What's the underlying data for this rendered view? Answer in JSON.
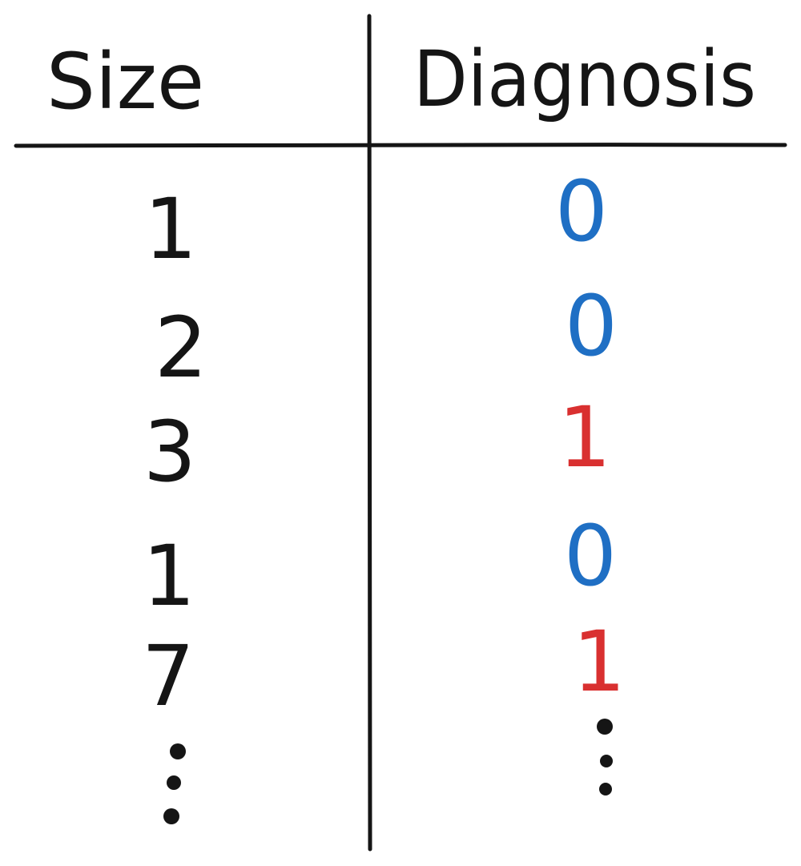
{
  "table": {
    "headers": {
      "left": "Size",
      "right": "Diagnosis"
    },
    "rows": [
      {
        "size": "1",
        "diagnosis": "0"
      },
      {
        "size": "2",
        "diagnosis": "0"
      },
      {
        "size": "3",
        "diagnosis": "1"
      },
      {
        "size": "1",
        "diagnosis": "0"
      },
      {
        "size": "7",
        "diagnosis": "1"
      }
    ],
    "continuation": "..."
  },
  "colors": {
    "ink": "#151515",
    "diagnosis_0": "#1f6fc4",
    "diagnosis_1": "#d93030"
  }
}
